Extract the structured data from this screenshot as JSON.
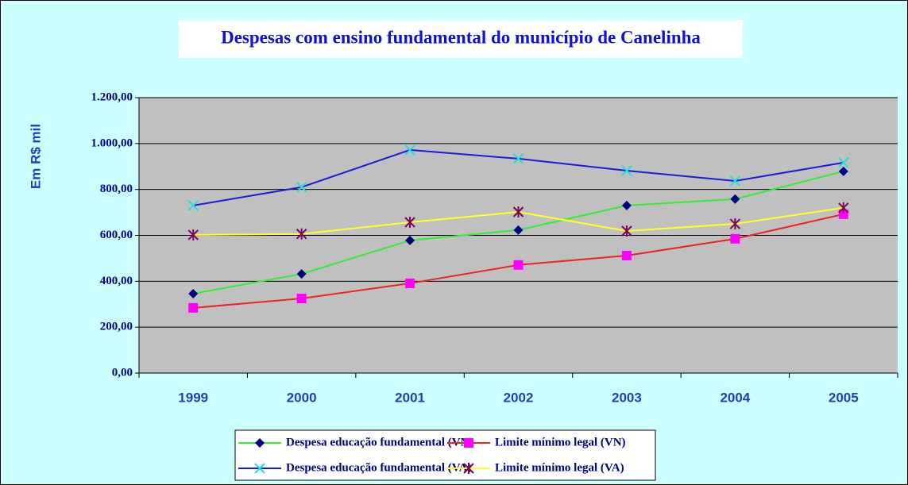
{
  "chart_data": {
    "type": "line",
    "title": "Despesas com ensino fundamental do município de Canelinha",
    "y_label": "Em R$ mil",
    "categories": [
      "1999",
      "2000",
      "2001",
      "2002",
      "2003",
      "2004",
      "2005"
    ],
    "series": [
      {
        "name": "Despesa educação fundamental (VN)",
        "color": "#33ee33",
        "marker": "diamond",
        "marker_color": "#000080",
        "values": [
          346,
          432,
          578,
          623,
          730,
          758,
          879
        ]
      },
      {
        "name": "Limite mínimo legal (VN)",
        "color": "#ee2222",
        "marker": "square",
        "marker_color": "#ff00ff",
        "values": [
          284,
          325,
          391,
          471,
          512,
          585,
          692
        ]
      },
      {
        "name": "Despesa educação fundamental (VA)",
        "color": "#1a1ad8",
        "marker": "x",
        "marker_color": "#22dddd",
        "values": [
          730,
          810,
          972,
          934,
          882,
          837,
          917
        ]
      },
      {
        "name": "Limite mínimo legal (VA)",
        "color": "#ffff22",
        "marker": "asterisk",
        "marker_color": "#800060",
        "values": [
          602,
          606,
          657,
          702,
          619,
          650,
          720
        ]
      }
    ],
    "ylim": [
      0,
      1200
    ],
    "yticks": [
      {
        "value": 0,
        "label": "0,00"
      },
      {
        "value": 200,
        "label": "200,00"
      },
      {
        "value": 400,
        "label": "400,00"
      },
      {
        "value": 600,
        "label": "600,00"
      },
      {
        "value": 800,
        "label": "800,00"
      },
      {
        "value": 1000,
        "label": "1.000,00"
      },
      {
        "value": 1200,
        "label": "1.200,00"
      }
    ],
    "grid": true,
    "legend": "bottom"
  }
}
